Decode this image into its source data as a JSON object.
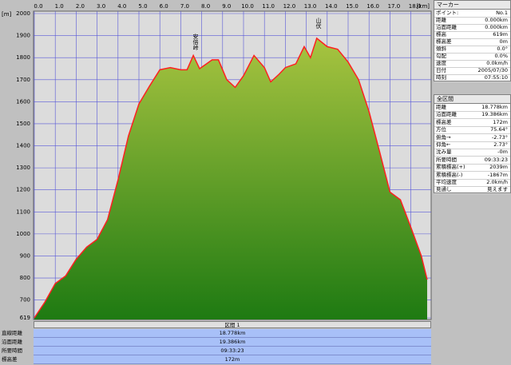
{
  "chart_data": {
    "type": "area",
    "xlabel": "[km]",
    "ylabel": "[m]",
    "x": [
      0,
      0.5,
      1.0,
      1.5,
      2.0,
      2.5,
      3.0,
      3.5,
      4.0,
      4.5,
      5.0,
      5.5,
      6.0,
      6.5,
      7.0,
      7.3,
      7.6,
      7.9,
      8.5,
      8.8,
      9.2,
      9.6,
      10.0,
      10.5,
      11.0,
      11.3,
      11.7,
      12.0,
      12.5,
      12.9,
      13.2,
      13.5,
      14.0,
      14.5,
      15.0,
      15.5,
      16.0,
      16.5,
      17.0,
      17.5,
      18.0,
      18.5,
      18.778
    ],
    "values": [
      619,
      690,
      775,
      810,
      885,
      940,
      975,
      1065,
      1245,
      1445,
      1590,
      1670,
      1745,
      1755,
      1745,
      1745,
      1810,
      1750,
      1790,
      1790,
      1700,
      1665,
      1718,
      1810,
      1755,
      1690,
      1725,
      1755,
      1772,
      1850,
      1800,
      1888,
      1850,
      1838,
      1780,
      1700,
      1555,
      1375,
      1190,
      1155,
      1030,
      900,
      793
    ],
    "color": "#ff2020",
    "xlim": [
      0,
      19.0
    ],
    "ylim": [
      619,
      2000
    ],
    "xticks": [
      {
        "value": 0,
        "label": "0.0"
      },
      {
        "value": 1,
        "label": "1.0"
      },
      {
        "value": 2,
        "label": "2.0"
      },
      {
        "value": 3,
        "label": "3.0"
      },
      {
        "value": 4,
        "label": "4.0"
      },
      {
        "value": 5,
        "label": "5.0"
      },
      {
        "value": 6,
        "label": "6.0"
      },
      {
        "value": 7,
        "label": "7.0"
      },
      {
        "value": 8,
        "label": "8.0"
      },
      {
        "value": 9,
        "label": "9.0"
      },
      {
        "value": 10,
        "label": "10.0"
      },
      {
        "value": 11,
        "label": "11.0"
      },
      {
        "value": 12,
        "label": "12.0"
      },
      {
        "value": 13,
        "label": "13.0"
      },
      {
        "value": 14,
        "label": "14.0"
      },
      {
        "value": 15,
        "label": "15.0"
      },
      {
        "value": 16,
        "label": "16.0"
      },
      {
        "value": 17,
        "label": "17.0"
      },
      {
        "value": 18,
        "label": "18.0"
      }
    ],
    "yticks": [
      619,
      700,
      800,
      900,
      1000,
      1100,
      1200,
      1300,
      1400,
      1500,
      1600,
      1700,
      1800,
      1900,
      2000
    ],
    "grid": true,
    "annotations": [
      "安倍峠",
      "山伏"
    ]
  },
  "marker": {
    "title": "マーカー",
    "rows": [
      [
        "ポイント:",
        "No.1"
      ],
      [
        "距離",
        "0.000km"
      ],
      [
        "沿面距離",
        "0.000km"
      ],
      [
        "標高",
        "619m"
      ],
      [
        "標高差",
        "0m"
      ],
      [
        "傾斜",
        "0.0°"
      ],
      [
        "勾配",
        "0.0%"
      ],
      [
        "速度",
        "0.0km/h"
      ],
      [
        "日付",
        "2005/07/30"
      ],
      [
        "時刻",
        "07:55:10"
      ]
    ]
  },
  "total": {
    "title": "全区間",
    "rows": [
      [
        "距離",
        "18.778km"
      ],
      [
        "沿面距離",
        "19.386km"
      ],
      [
        "標高差",
        "172m"
      ],
      [
        "方位",
        "75.64°"
      ],
      [
        "俯角→",
        "-2.73°"
      ],
      [
        "仰角←",
        "2.73°"
      ],
      [
        "沈み量",
        "-0m"
      ],
      [
        "所要時間",
        "09:33:23"
      ],
      [
        "累積標高(+)",
        "2039m"
      ],
      [
        "累積標高(-)",
        "-1867m"
      ],
      [
        "平均速度",
        "2.0km/h"
      ],
      [
        "見通し",
        "見えます"
      ]
    ]
  },
  "section": {
    "title": "区間 1",
    "rows": [
      [
        "直線距離",
        "18.778km"
      ],
      [
        "沿面距離",
        "19.386km"
      ],
      [
        "所要時間",
        "09:33:23"
      ],
      [
        "標高差",
        "172m"
      ]
    ]
  }
}
